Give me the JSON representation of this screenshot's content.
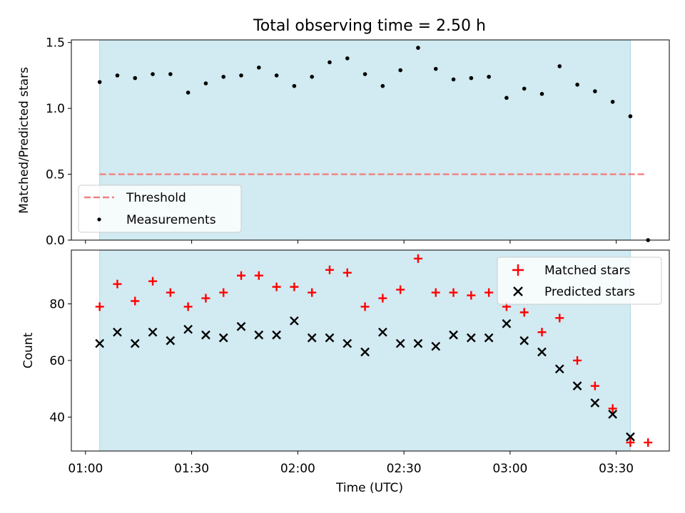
{
  "title": "Total observing time = 2.50 h",
  "colors": {
    "span": "#add8e6",
    "threshold": "#f08080",
    "measurement": "#000000",
    "matched": "#ff0000",
    "predicted": "#000000"
  },
  "chart_data": [
    {
      "type": "scatter",
      "panel": "top",
      "ylabel": "Matched/Predicted stars",
      "ylim": [
        0.0,
        1.52
      ],
      "yticks": [
        0.0,
        0.5,
        1.0,
        1.5
      ],
      "yticklabels": [
        "0.0",
        "0.5",
        "1.0",
        "1.5"
      ],
      "xlim": [
        "00:56",
        "03:45"
      ],
      "shaded_span": [
        "01:04",
        "03:34"
      ],
      "threshold": {
        "name": "Threshold",
        "value": 0.5,
        "x_range": [
          "01:04",
          "03:38"
        ]
      },
      "legend": {
        "placement": "lower-left",
        "entries": [
          "Threshold",
          "Measurements"
        ]
      },
      "series": [
        {
          "name": "Measurements",
          "x": [
            "01:04",
            "01:09",
            "01:14",
            "01:19",
            "01:24",
            "01:29",
            "01:34",
            "01:39",
            "01:44",
            "01:49",
            "01:54",
            "01:59",
            "02:04",
            "02:09",
            "02:14",
            "02:19",
            "02:24",
            "02:29",
            "02:34",
            "02:39",
            "02:44",
            "02:49",
            "02:54",
            "02:59",
            "03:04",
            "03:09",
            "03:14",
            "03:19",
            "03:24",
            "03:29",
            "03:34",
            "03:39"
          ],
          "values": [
            1.2,
            1.25,
            1.23,
            1.26,
            1.26,
            1.12,
            1.19,
            1.24,
            1.25,
            1.31,
            1.25,
            1.17,
            1.24,
            1.35,
            1.38,
            1.26,
            1.17,
            1.29,
            1.46,
            1.3,
            1.22,
            1.23,
            1.24,
            1.08,
            1.15,
            1.11,
            1.32,
            1.18,
            1.13,
            1.05,
            0.94,
            0.0
          ]
        }
      ]
    },
    {
      "type": "scatter",
      "panel": "bottom",
      "ylabel": "Count",
      "xlabel": "Time (UTC)",
      "ylim": [
        28,
        99
      ],
      "yticks": [
        40,
        60,
        80
      ],
      "yticklabels": [
        "40",
        "60",
        "80"
      ],
      "xlim": [
        "00:56",
        "03:45"
      ],
      "xticks": [
        "01:00",
        "01:30",
        "02:00",
        "02:30",
        "03:00",
        "03:30"
      ],
      "xticklabels": [
        "01:00",
        "01:30",
        "02:00",
        "02:30",
        "03:00",
        "03:30"
      ],
      "shaded_span": [
        "01:04",
        "03:34"
      ],
      "legend": {
        "placement": "upper-right",
        "entries": [
          "Matched stars",
          "Predicted stars"
        ]
      },
      "series": [
        {
          "name": "Matched stars",
          "marker": "plus",
          "x": [
            "01:04",
            "01:09",
            "01:14",
            "01:19",
            "01:24",
            "01:29",
            "01:34",
            "01:39",
            "01:44",
            "01:49",
            "01:54",
            "01:59",
            "02:04",
            "02:09",
            "02:14",
            "02:19",
            "02:24",
            "02:29",
            "02:34",
            "02:39",
            "02:44",
            "02:49",
            "02:54",
            "02:59",
            "03:04",
            "03:09",
            "03:14",
            "03:19",
            "03:24",
            "03:29",
            "03:34",
            "03:39"
          ],
          "values": [
            79,
            87,
            81,
            88,
            84,
            79,
            82,
            84,
            90,
            90,
            86,
            86,
            84,
            92,
            91,
            79,
            82,
            85,
            96,
            84,
            84,
            83,
            84,
            79,
            77,
            70,
            75,
            60,
            51,
            43,
            31,
            31
          ]
        },
        {
          "name": "Predicted stars",
          "marker": "x",
          "x": [
            "01:04",
            "01:09",
            "01:14",
            "01:19",
            "01:24",
            "01:29",
            "01:34",
            "01:39",
            "01:44",
            "01:49",
            "01:54",
            "01:59",
            "02:04",
            "02:09",
            "02:14",
            "02:19",
            "02:24",
            "02:29",
            "02:34",
            "02:39",
            "02:44",
            "02:49",
            "02:54",
            "02:59",
            "03:04",
            "03:09",
            "03:14",
            "03:19",
            "03:24",
            "03:29",
            "03:34"
          ],
          "values": [
            66,
            70,
            66,
            70,
            67,
            71,
            69,
            68,
            72,
            69,
            69,
            74,
            68,
            68,
            66,
            63,
            70,
            66,
            66,
            65,
            69,
            68,
            68,
            73,
            67,
            63,
            57,
            51,
            45,
            41,
            33
          ]
        }
      ]
    }
  ]
}
